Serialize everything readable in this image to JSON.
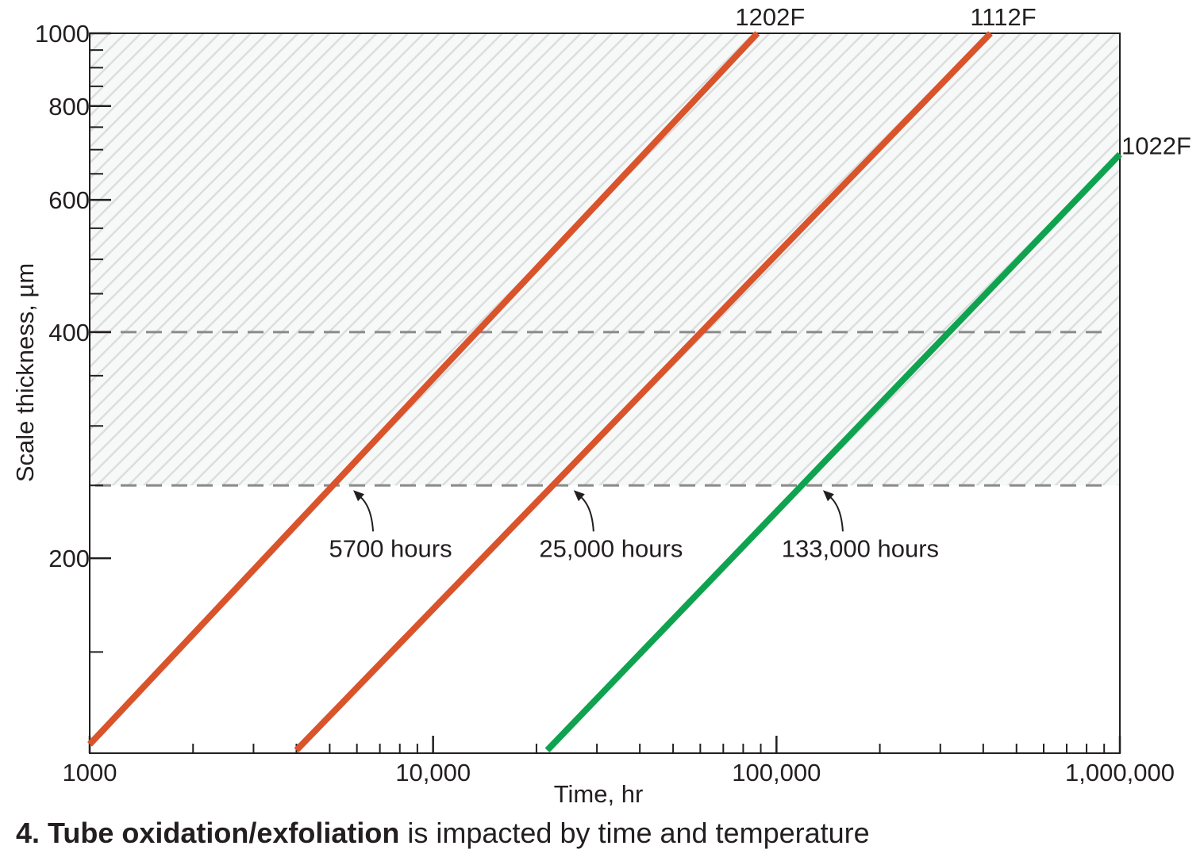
{
  "chart_data": {
    "type": "line",
    "xlabel": "Time, hr",
    "ylabel": "Scale thickness, µm",
    "x_scale": "log",
    "y_scale": "log",
    "xlim": [
      1000,
      1000000
    ],
    "ylim": [
      110,
      1000
    ],
    "x_ticks": [
      1000,
      10000,
      100000,
      1000000
    ],
    "x_tick_labels": [
      "1000",
      "10,000",
      "100,000",
      "1,000,000"
    ],
    "y_ticks": [
      200,
      400,
      600,
      800,
      1000
    ],
    "y_tick_labels": [
      "200",
      "400",
      "600",
      "800",
      "1000"
    ],
    "grid": false,
    "series": [
      {
        "name": "1202F",
        "color": "#d9532b",
        "x": [
          1000,
          88000
        ],
        "y": [
          113,
          1000
        ]
      },
      {
        "name": "1112F",
        "color": "#d9532b",
        "x": [
          4000,
          420000
        ],
        "y": [
          111,
          1000
        ]
      },
      {
        "name": "1022F",
        "color": "#0fa34f",
        "x": [
          21500,
          1000000
        ],
        "y": [
          111,
          690
        ]
      }
    ],
    "reference_lines": [
      {
        "y": 400,
        "style": "dashed",
        "color": "#8a8a8a"
      },
      {
        "y": 250,
        "style": "dashed",
        "color": "#8a8a8a"
      }
    ],
    "shaded_region": {
      "y_min": 250,
      "y_max": 1000,
      "pattern": "diagonal-hatch"
    },
    "annotations": [
      {
        "text": "5700 hours",
        "x": 5700,
        "y": 250
      },
      {
        "text": "25,000 hours",
        "x": 25000,
        "y": 250
      },
      {
        "text": "133,000 hours",
        "x": 133000,
        "y": 250
      }
    ]
  },
  "caption": {
    "bold": "4. Tube oxidation/exfoliation",
    "rest": " is impacted by time and temperature"
  }
}
